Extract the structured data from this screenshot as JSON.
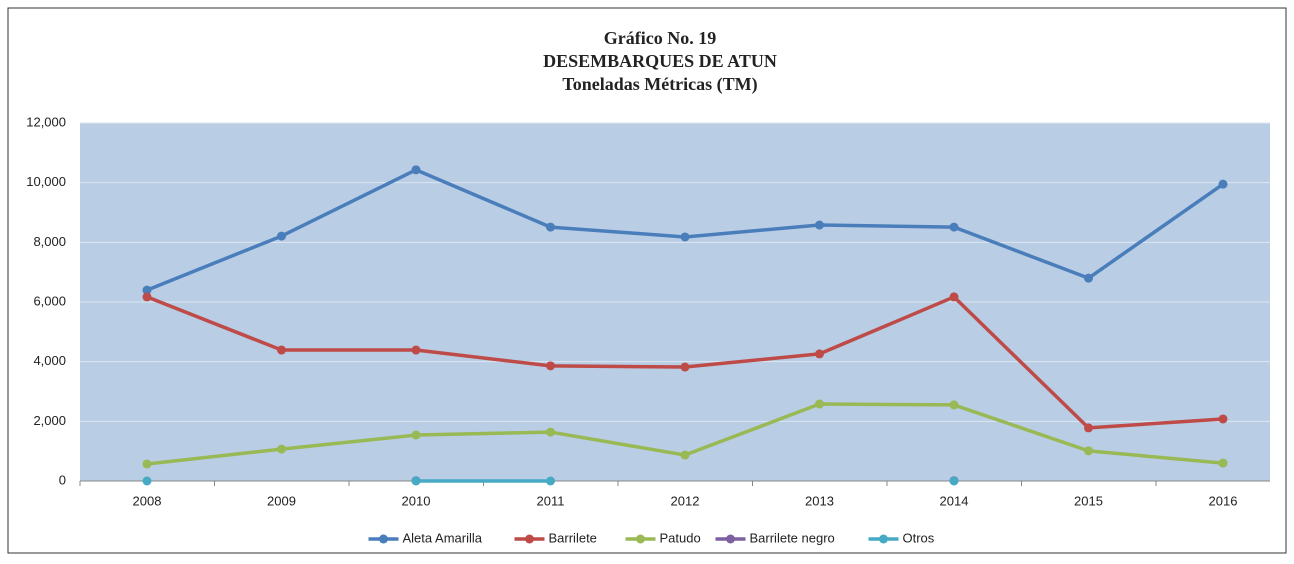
{
  "chart_data": {
    "type": "line",
    "title": [
      "Gráfico No. 19",
      "DESEMBARQUES DE ATUN",
      "Toneladas Métricas (TM)"
    ],
    "categories": [
      "2008",
      "2009",
      "2010",
      "2011",
      "2012",
      "2013",
      "2014",
      "2015",
      "2016"
    ],
    "series": [
      {
        "name": "Aleta Amarilla",
        "color": "#4a7ebb",
        "values": [
          6400,
          8210,
          10430,
          8510,
          8180,
          8580,
          8510,
          6800,
          9950
        ]
      },
      {
        "name": "Barrilete",
        "color": "#be4b48",
        "values": [
          6170,
          4390,
          4390,
          3860,
          3820,
          4260,
          6170,
          1780,
          2080
        ]
      },
      {
        "name": "Patudo",
        "color": "#98b954",
        "values": [
          570,
          1070,
          1540,
          1640,
          870,
          2580,
          2550,
          1010,
          600
        ]
      },
      {
        "name": "Barrilete negro",
        "color": "#7d60a0",
        "values": [
          null,
          null,
          10,
          null,
          null,
          null,
          10,
          null,
          null
        ]
      },
      {
        "name": "Otros",
        "color": "#46aac5",
        "values": [
          0,
          null,
          0,
          0,
          null,
          null,
          0,
          null,
          null
        ]
      }
    ],
    "ylim": [
      0,
      12000
    ],
    "yticks": [
      0,
      {
        "value": 2000,
        "label": "2,000"
      },
      {
        "value": 4000,
        "label": "4,000"
      },
      {
        "value": 6000,
        "label": "6,000"
      },
      {
        "value": 8000,
        "label": "8,000"
      },
      {
        "value": 10000,
        "label": "10,000"
      },
      {
        "value": 12000,
        "label": "12,000"
      }
    ],
    "grid": true,
    "legend": "bottom",
    "plot_background": "#b9cde5"
  }
}
